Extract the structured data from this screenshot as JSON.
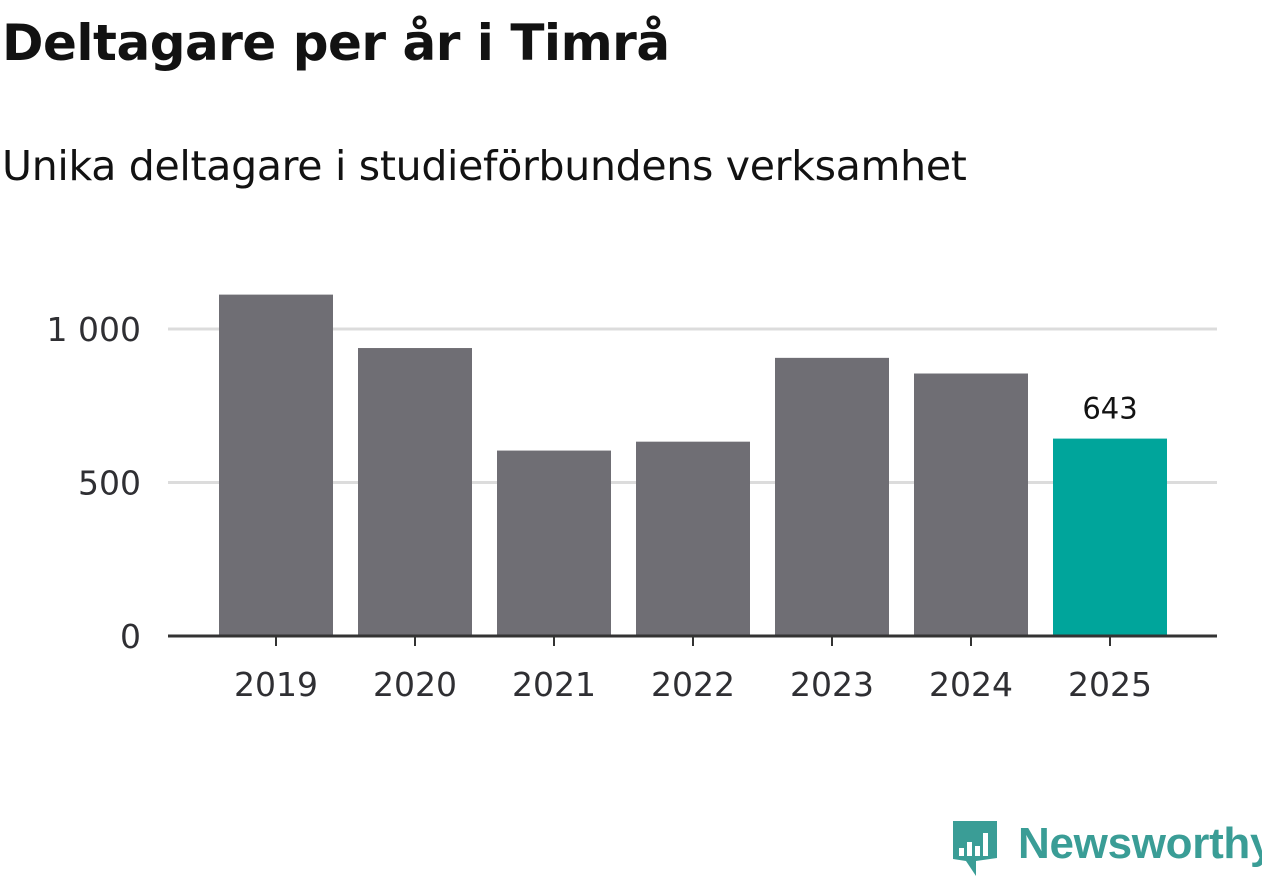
{
  "chart_data": {
    "type": "bar",
    "title": "Deltagare per år i Timrå",
    "subtitle": "Unika deltagare i studieförbundens verksamhet",
    "categories": [
      "2019",
      "2020",
      "2021",
      "2022",
      "2023",
      "2024",
      "2025"
    ],
    "values": [
      1112,
      938,
      604,
      633,
      906,
      855,
      643
    ],
    "ylim": [
      0,
      1150
    ],
    "yticks": [
      0,
      500,
      1000
    ],
    "ytick_labels": [
      "0",
      "500",
      "1 000"
    ],
    "grid": true,
    "highlight": {
      "index": 6,
      "label": "643"
    },
    "colors": {
      "bar": "#6f6e74",
      "highlight": "#00a59b",
      "grid": "#dcdcdc",
      "axis": "#333333"
    }
  },
  "brand": {
    "name": "Newsworthy",
    "icon": "newsworthy-logo-icon",
    "color": "#3a9d96"
  }
}
